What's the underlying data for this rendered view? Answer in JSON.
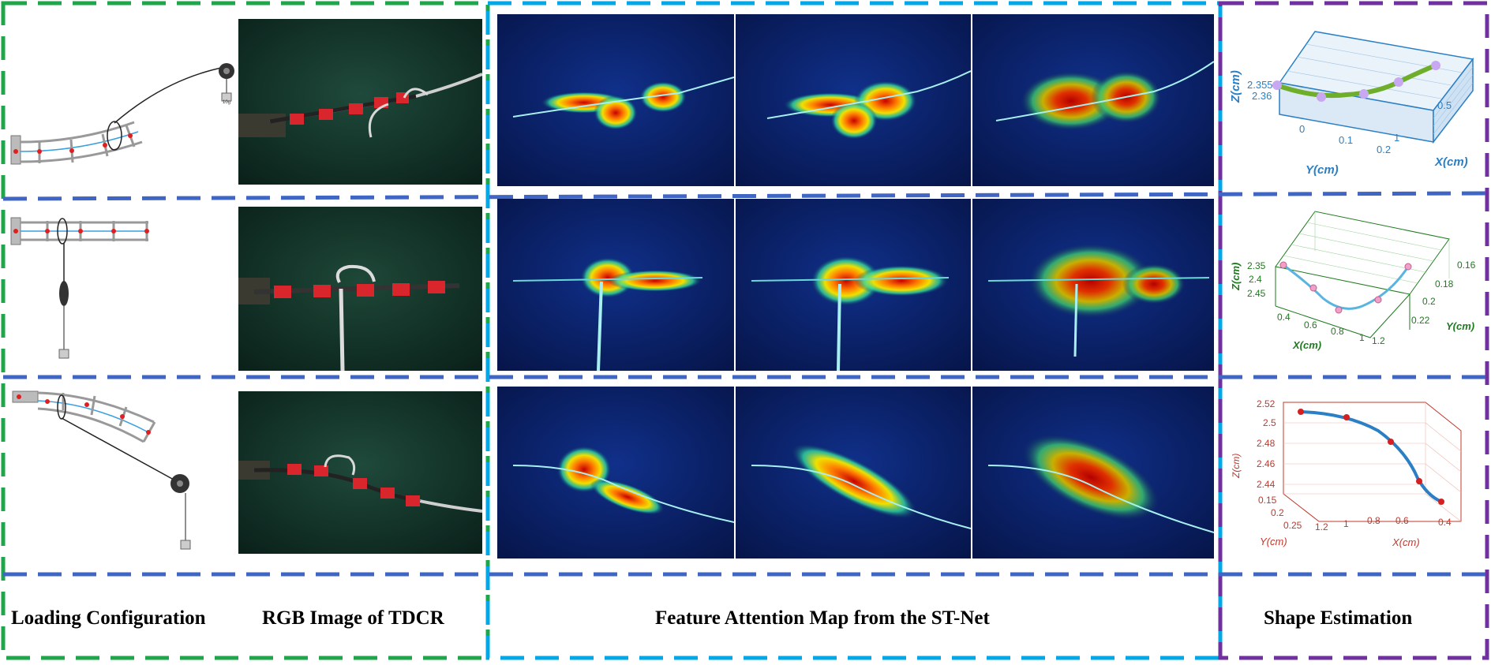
{
  "captions": {
    "loading": "Loading Configuration",
    "rgb": "RGB Image of TDCR",
    "attention": "Feature Attention Map from the ST-Net",
    "shape": "Shape Estimation"
  },
  "colors": {
    "green_frame": "#1fa64a",
    "blue_frame": "#3f66c4",
    "cyan_frame": "#00a8e8",
    "purple_frame": "#7030a0",
    "plot1": "#2a7fc5",
    "plot2": "#1e7a1e",
    "plot3": "#c0392b"
  },
  "weight_label": "10g",
  "plots": [
    {
      "zlabel": "Z(cm)",
      "ylabel": "Y(cm)",
      "xlabel": "X(cm)",
      "zticks": [
        "2.355",
        "2.36"
      ],
      "yticks": [
        "0",
        "0.1",
        "0.2"
      ],
      "xticks": [
        "1",
        "0.5"
      ]
    },
    {
      "zlabel": "Z(cm)",
      "xlabel": "X(cm)",
      "ylabel": "Y(cm)",
      "zticks": [
        "2.35",
        "2.4",
        "2.45"
      ],
      "xticks": [
        "0.4",
        "0.6",
        "0.8",
        "1",
        "1.2"
      ],
      "yticks": [
        "0.16",
        "0.18",
        "0.2",
        "0.22"
      ]
    },
    {
      "zlabel": "Z(cm)",
      "ylabel": "Y(cm)",
      "xlabel": "X(cm)",
      "zticks": [
        "2.52",
        "2.5",
        "2.48",
        "2.46",
        "2.44"
      ],
      "yticks": [
        "0.15",
        "0.2",
        "0.25"
      ],
      "xticks": [
        "1.2",
        "1",
        "0.8",
        "0.6",
        "0.4"
      ]
    }
  ]
}
